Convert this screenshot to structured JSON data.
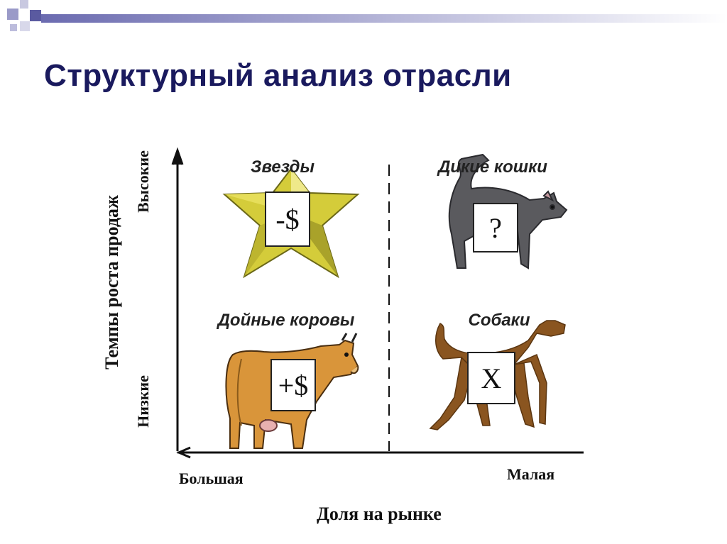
{
  "slide": {
    "title": "Структурный анализ отрасли"
  },
  "axes": {
    "y_title": "Темпы роста продаж",
    "y_high": "Высокие",
    "y_low": "Низкие",
    "x_title": "Доля на рынке",
    "x_large": "Большая",
    "x_small": "Малая"
  },
  "quadrants": {
    "stars": {
      "label": "Звезды",
      "symbol": "-$"
    },
    "wildcats": {
      "label": "Дикие кошки",
      "symbol": "?"
    },
    "cows": {
      "label": "Дойные коровы",
      "symbol": "+$"
    },
    "dogs": {
      "label": "Собаки",
      "symbol": "X"
    }
  },
  "colors": {
    "title": "#1a1a5e",
    "star": "#d4cc3a",
    "cat": "#5a5a5e",
    "cow": "#d9953a",
    "dog": "#8a5520"
  }
}
